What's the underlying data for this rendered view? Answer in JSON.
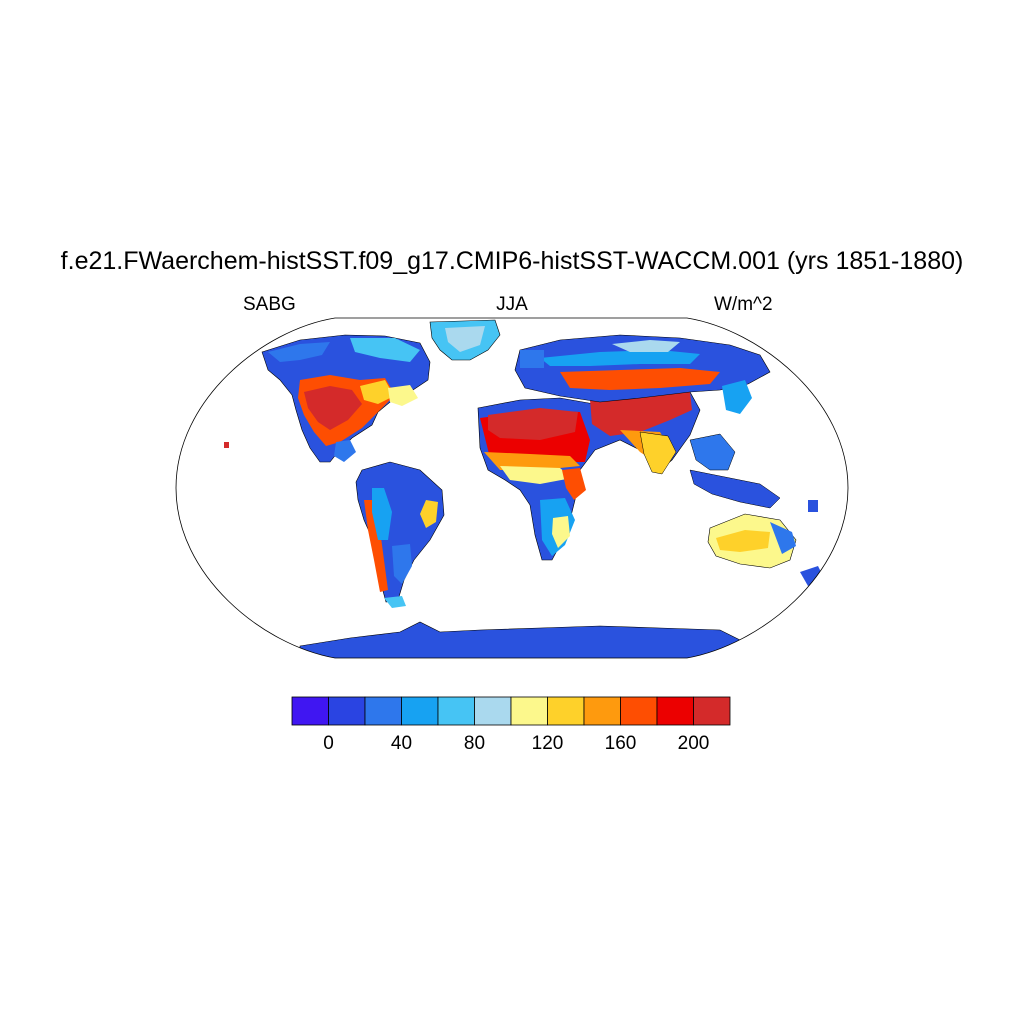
{
  "title": "f.e21.FWaerchem-histSST.f09_g17.CMIP6-histSST-WACCM.001 (yrs 1851-1880)",
  "subtitle": {
    "left": "SABG",
    "center": "JJA",
    "right": "W/m^2"
  },
  "colors": {
    "land_default": "#2a52de",
    "coastline": "#000000",
    "map_border": "#000000"
  },
  "colorbar": {
    "colors": [
      "#4016f2",
      "#2a44e2",
      "#2e77ec",
      "#17a2f2",
      "#46c4f4",
      "#aad9ee",
      "#fcf88c",
      "#fed12a",
      "#fe9a0e",
      "#fe4e02",
      "#ec0000",
      "#d42a2a"
    ],
    "labels": [
      "0",
      "40",
      "80",
      "120",
      "160",
      "200"
    ]
  }
}
